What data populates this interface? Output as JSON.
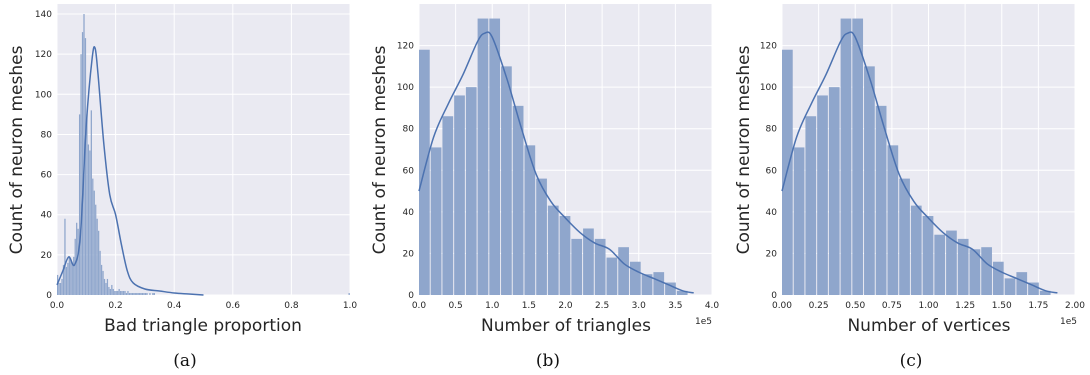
{
  "colors": {
    "axes_bg": "#eaeaf2",
    "grid": "#ffffff",
    "bar_fill": "#8fa6cc",
    "kde_line": "#4c72b0"
  },
  "chart_data": [
    {
      "type": "bar",
      "subtype": "histogram-with-kde",
      "caption": "(a)",
      "xlabel": "Bad triangle proportion",
      "ylabel": "Count of neuron meshes",
      "xlim": [
        0,
        1.0
      ],
      "ylim": [
        0,
        145
      ],
      "xticks": [
        "0.0",
        "0.2",
        "0.4",
        "0.6",
        "0.8",
        "1.0"
      ],
      "yticks": [
        "0",
        "20",
        "40",
        "60",
        "80",
        "100",
        "120",
        "140"
      ],
      "x_tick_values": [
        0,
        0.2,
        0.4,
        0.6,
        0.8,
        1.0
      ],
      "y_tick_values": [
        0,
        20,
        40,
        60,
        80,
        100,
        120,
        140
      ],
      "grid": true,
      "bin_start": 0.0,
      "bin_width": 0.005,
      "values": [
        10,
        6,
        6,
        8,
        15,
        38,
        14,
        16,
        19,
        18,
        16,
        19,
        28,
        36,
        33,
        90,
        120,
        131,
        140,
        128,
        90,
        75,
        72,
        92,
        58,
        52,
        45,
        38,
        32,
        22,
        15,
        12,
        8,
        6,
        8,
        4,
        3,
        5,
        3,
        2,
        2,
        2,
        3,
        2,
        2,
        2,
        2,
        1,
        2,
        1,
        1,
        1,
        1,
        1,
        1,
        1,
        1,
        1,
        1,
        1,
        1,
        1,
        0,
        1,
        0,
        1,
        1,
        0,
        0,
        0,
        0,
        0,
        0,
        0,
        0,
        0,
        0,
        0,
        0,
        0,
        0,
        0,
        0,
        0,
        0,
        0,
        0,
        0,
        0,
        0,
        0,
        0,
        0,
        0,
        0,
        0,
        0,
        0,
        0,
        0,
        0,
        0,
        0,
        0,
        0,
        0,
        0,
        0,
        0,
        0,
        0,
        0,
        0,
        0,
        0,
        0,
        0,
        0,
        0,
        0,
        0,
        0,
        0,
        0,
        0,
        0,
        0,
        0,
        0,
        0,
        0,
        0,
        0,
        0,
        0,
        0,
        0,
        0,
        0,
        0,
        0,
        0,
        0,
        0,
        0,
        0,
        0,
        0,
        0,
        0,
        0,
        0,
        0,
        0,
        0,
        0,
        0,
        0,
        0,
        0,
        0,
        0,
        0,
        0,
        0,
        0,
        0,
        0,
        0,
        0,
        0,
        0,
        0,
        0,
        0,
        0,
        0,
        0,
        0,
        0,
        0,
        0,
        0,
        0,
        0,
        0,
        0,
        0,
        0,
        0,
        0,
        0,
        0,
        0,
        0,
        0,
        0,
        0,
        0,
        1
      ],
      "kde": {
        "x": [
          0.0,
          0.02,
          0.04,
          0.06,
          0.08,
          0.1,
          0.12,
          0.13,
          0.14,
          0.16,
          0.18,
          0.2,
          0.22,
          0.24,
          0.26,
          0.3,
          0.35,
          0.4,
          0.45,
          0.5
        ],
        "y": [
          5,
          12,
          19,
          15,
          30,
          85,
          118,
          123,
          110,
          75,
          50,
          40,
          25,
          12,
          6,
          3,
          2,
          1,
          0.5,
          0
        ]
      }
    },
    {
      "type": "bar",
      "subtype": "histogram-with-kde",
      "caption": "(b)",
      "xlabel": "Number of triangles",
      "ylabel": "Count of neuron meshes",
      "scale_label": "1e5",
      "xlim": [
        0,
        4.0
      ],
      "ylim": [
        0,
        140
      ],
      "xticks": [
        "0.0",
        "0.5",
        "1.0",
        "1.5",
        "2.0",
        "2.5",
        "3.0",
        "3.5",
        "4.0"
      ],
      "yticks": [
        "0",
        "20",
        "40",
        "60",
        "80",
        "100",
        "120"
      ],
      "x_tick_values": [
        0,
        0.5,
        1.0,
        1.5,
        2.0,
        2.5,
        3.0,
        3.5,
        4.0
      ],
      "y_tick_values": [
        0,
        20,
        40,
        60,
        80,
        100,
        120
      ],
      "grid": true,
      "bin_start": 0.0,
      "bin_width": 0.16,
      "values": [
        118,
        71,
        86,
        96,
        100,
        133,
        133,
        110,
        91,
        72,
        56,
        43,
        38,
        27,
        32,
        27,
        18,
        23,
        16,
        10,
        11,
        6,
        2
      ],
      "kde": {
        "x": [
          0.0,
          0.2,
          0.4,
          0.6,
          0.8,
          0.9,
          1.0,
          1.2,
          1.4,
          1.6,
          1.8,
          2.0,
          2.2,
          2.4,
          2.6,
          2.8,
          3.0,
          3.2,
          3.4,
          3.6,
          3.75
        ],
        "y": [
          50,
          76,
          92,
          106,
          122,
          126,
          124,
          104,
          80,
          58,
          45,
          37,
          30,
          25,
          22,
          15,
          11,
          8,
          5,
          2,
          1
        ]
      }
    },
    {
      "type": "bar",
      "subtype": "histogram-with-kde",
      "caption": "(c)",
      "xlabel": "Number of vertices",
      "ylabel": "Count of neuron meshes",
      "scale_label": "1e5",
      "xlim": [
        0,
        2.0
      ],
      "ylim": [
        0,
        140
      ],
      "xticks": [
        "0.00",
        "0.25",
        "0.50",
        "0.75",
        "1.00",
        "1.25",
        "1.50",
        "1.75",
        "2.00"
      ],
      "yticks": [
        "0",
        "20",
        "40",
        "60",
        "80",
        "100",
        "120"
      ],
      "x_tick_values": [
        0,
        0.25,
        0.5,
        0.75,
        1.0,
        1.25,
        1.5,
        1.75,
        2.0
      ],
      "y_tick_values": [
        0,
        20,
        40,
        60,
        80,
        100,
        120
      ],
      "grid": true,
      "bin_start": 0.0,
      "bin_width": 0.08,
      "values": [
        118,
        71,
        86,
        96,
        100,
        133,
        133,
        110,
        91,
        72,
        56,
        43,
        38,
        29,
        31,
        27,
        22,
        23,
        16,
        8,
        11,
        6,
        2
      ],
      "kde": {
        "x": [
          0.0,
          0.1,
          0.2,
          0.3,
          0.4,
          0.45,
          0.5,
          0.6,
          0.7,
          0.8,
          0.9,
          1.0,
          1.1,
          1.2,
          1.3,
          1.4,
          1.5,
          1.6,
          1.7,
          1.8,
          1.88
        ],
        "y": [
          50,
          76,
          92,
          106,
          122,
          126,
          124,
          104,
          80,
          58,
          45,
          37,
          30,
          25,
          22,
          15,
          11,
          8,
          5,
          2,
          1
        ]
      }
    }
  ]
}
